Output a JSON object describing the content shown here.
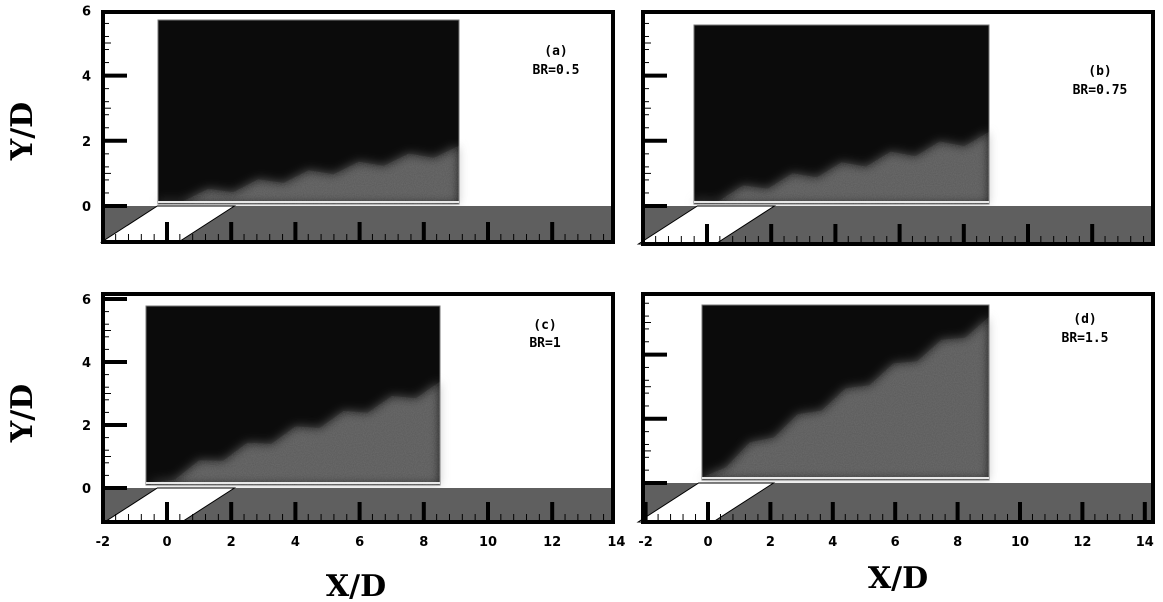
{
  "figure": {
    "y_axis_label": "Y/D",
    "x_axis_label": "X/D",
    "x_ticks": [
      "-2",
      "0",
      "2",
      "4",
      "6",
      "8",
      "10",
      "12",
      "14"
    ],
    "y_ticks": [
      "0",
      "2",
      "4",
      "6"
    ],
    "x_range": [
      -2,
      14
    ],
    "y_range": [
      -1.2,
      6
    ],
    "panels": [
      {
        "id": "a",
        "label": "(a)",
        "br": "BR=0.5",
        "y_ticks_shown": true,
        "x_ticks_shown": false,
        "plume_height_at_end": 1.7
      },
      {
        "id": "b",
        "label": "(b)",
        "br": "BR=0.75",
        "y_ticks_shown": false,
        "x_ticks_shown": false,
        "plume_height_at_end": 2.1
      },
      {
        "id": "c",
        "label": "(c)",
        "br": "BR=1",
        "y_ticks_shown": true,
        "x_ticks_shown": true,
        "plume_height_at_end": 3.2
      },
      {
        "id": "d",
        "label": "(d)",
        "br": "BR=1.5",
        "y_ticks_shown": false,
        "x_ticks_shown": true,
        "plume_height_at_end": 5.0
      }
    ]
  }
}
